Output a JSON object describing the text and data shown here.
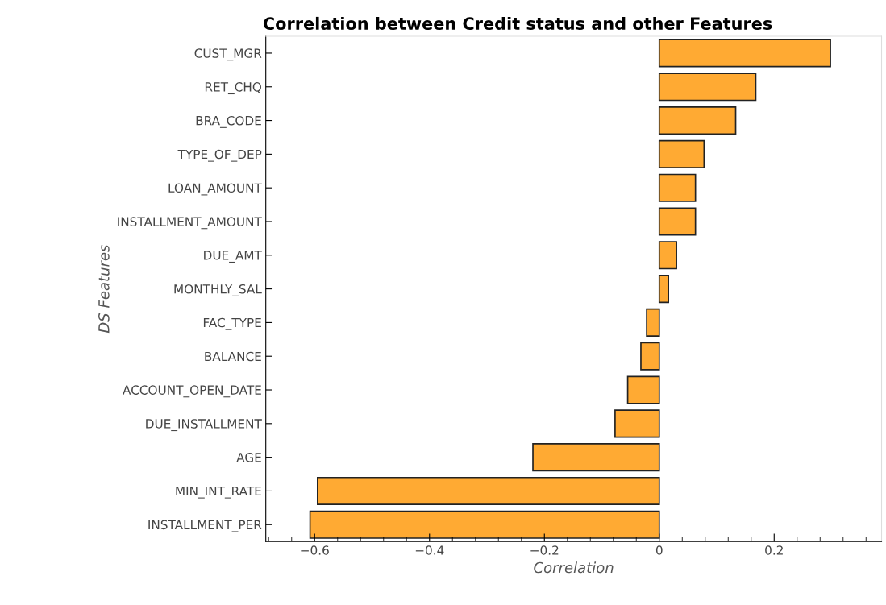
{
  "chart_data": {
    "type": "bar",
    "orientation": "horizontal",
    "title": "Correlation between Credit status and other Features",
    "xlabel": "Correlation",
    "ylabel": "DS Features",
    "categories": [
      "CUST_MGR",
      "RET_CHQ",
      "BRA_CODE",
      "TYPE_OF_DEP",
      "LOAN_AMOUNT",
      "INSTALLMENT_AMOUNT",
      "DUE_AMT",
      "MONTHLY_SAL",
      "FAC_TYPE",
      "BALANCE",
      "ACCOUNT_OPEN_DATE",
      "DUE_INSTALLMENT",
      "AGE",
      "MIN_INT_RATE",
      "INSTALLMENT_PER"
    ],
    "values": [
      0.298,
      0.168,
      0.133,
      0.078,
      0.063,
      0.063,
      0.03,
      0.016,
      -0.022,
      -0.032,
      -0.055,
      -0.077,
      -0.22,
      -0.595,
      -0.608
    ],
    "color": "#ffaa33",
    "xlim": [
      -0.685,
      0.387
    ],
    "xticks": [
      {
        "value": -0.6,
        "label": "−0.6"
      },
      {
        "value": -0.4,
        "label": "−0.4"
      },
      {
        "value": -0.2,
        "label": "−0.2"
      },
      0,
      0.2
    ],
    "grid": false,
    "legend": false
  }
}
